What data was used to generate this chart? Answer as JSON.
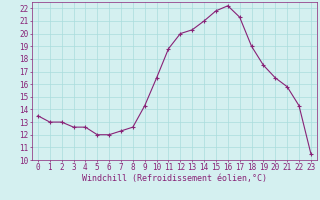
{
  "x": [
    0,
    1,
    2,
    3,
    4,
    5,
    6,
    7,
    8,
    9,
    10,
    11,
    12,
    13,
    14,
    15,
    16,
    17,
    18,
    19,
    20,
    21,
    22,
    23
  ],
  "y": [
    13.5,
    13.0,
    13.0,
    12.6,
    12.6,
    12.0,
    12.0,
    12.3,
    12.6,
    14.3,
    16.5,
    18.8,
    20.0,
    20.3,
    21.0,
    21.8,
    22.2,
    21.3,
    19.0,
    17.5,
    16.5,
    15.8,
    14.3,
    10.5
  ],
  "line_color": "#882277",
  "marker": "+",
  "marker_size": 3,
  "marker_lw": 0.8,
  "line_width": 0.8,
  "bg_color": "#d4f0f0",
  "grid_color": "#aadddd",
  "tick_color": "#882277",
  "label_color": "#882277",
  "xlabel": "Windchill (Refroidissement éolien,°C)",
  "xlim_min": -0.5,
  "xlim_max": 23.5,
  "ylim_min": 10,
  "ylim_max": 22.5,
  "yticks": [
    10,
    11,
    12,
    13,
    14,
    15,
    16,
    17,
    18,
    19,
    20,
    21,
    22
  ],
  "xticks": [
    0,
    1,
    2,
    3,
    4,
    5,
    6,
    7,
    8,
    9,
    10,
    11,
    12,
    13,
    14,
    15,
    16,
    17,
    18,
    19,
    20,
    21,
    22,
    23
  ],
  "tick_fontsize": 5.5,
  "xlabel_fontsize": 6.0,
  "spine_color": "#882277"
}
